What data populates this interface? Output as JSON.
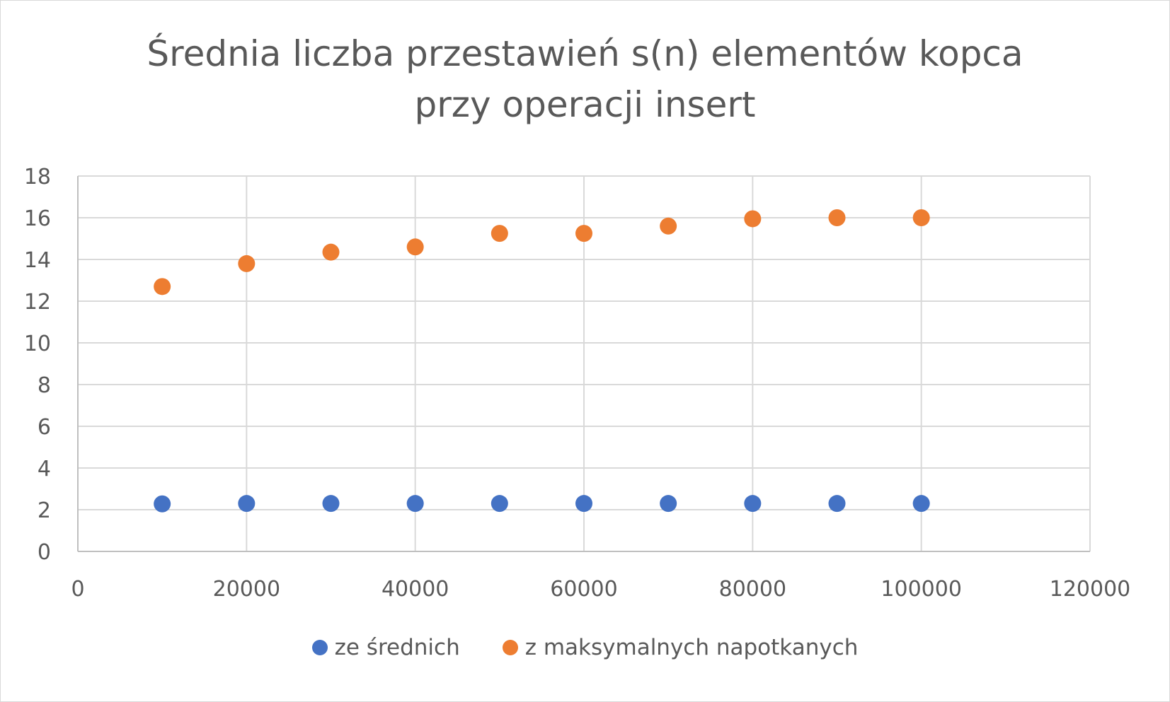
{
  "chart_data": {
    "type": "scatter",
    "title": "Średnia liczba przestawień s(n) elementów kopca przy operacji insert",
    "title_lines": [
      "Średnia liczba przestawień s(n) elementów kopca",
      "przy operacji insert"
    ],
    "xlabel": "",
    "ylabel": "",
    "xlim": [
      0,
      120000
    ],
    "ylim": [
      0,
      18
    ],
    "xticks": [
      0,
      20000,
      40000,
      60000,
      80000,
      100000,
      120000
    ],
    "yticks": [
      0,
      2,
      4,
      6,
      8,
      10,
      12,
      14,
      16,
      18
    ],
    "grid": true,
    "legend_position": "bottom",
    "series": [
      {
        "name": "ze średnich",
        "color": "#4472c4",
        "x": [
          10000,
          20000,
          30000,
          40000,
          50000,
          60000,
          70000,
          80000,
          90000,
          100000
        ],
        "y": [
          2.28,
          2.3,
          2.3,
          2.3,
          2.3,
          2.3,
          2.3,
          2.3,
          2.3,
          2.3
        ]
      },
      {
        "name": "z maksymalnych napotkanych",
        "color": "#ed7d31",
        "x": [
          10000,
          20000,
          30000,
          40000,
          50000,
          60000,
          70000,
          80000,
          90000,
          100000
        ],
        "y": [
          12.7,
          13.8,
          14.35,
          14.6,
          15.25,
          15.25,
          15.6,
          15.95,
          16.0,
          16.0
        ]
      }
    ]
  }
}
